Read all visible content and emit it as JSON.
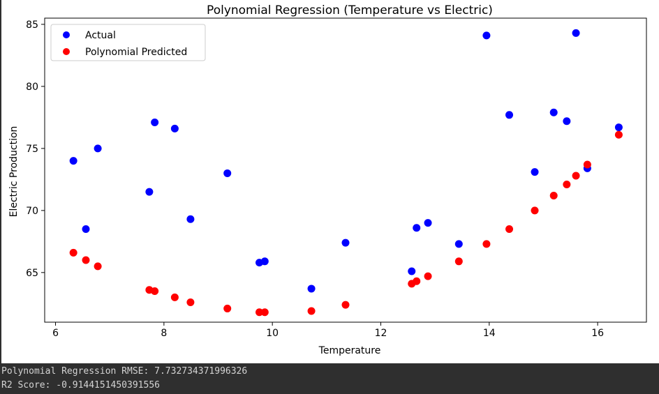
{
  "chart_data": {
    "type": "scatter",
    "title": "Polynomial Regression (Temperature vs Electric)",
    "xlabel": "Temperature",
    "ylabel": "Electric Production",
    "xlim": [
      5.8,
      16.9
    ],
    "ylim": [
      61.0,
      85.5
    ],
    "xticks": [
      "6",
      "8",
      "10",
      "12",
      "14",
      "16"
    ],
    "xtick_values": [
      6,
      8,
      10,
      12,
      14,
      16
    ],
    "yticks": [
      "65",
      "70",
      "75",
      "80",
      "85"
    ],
    "ytick_values": [
      65,
      70,
      75,
      80,
      85
    ],
    "grid": false,
    "legend_position": "top-left",
    "series": [
      {
        "name": "Actual",
        "color": "#0000ff",
        "x": [
          6.33,
          6.56,
          6.78,
          7.73,
          7.83,
          8.2,
          8.49,
          9.17,
          9.76,
          9.86,
          10.72,
          11.35,
          12.57,
          12.66,
          12.87,
          13.44,
          13.95,
          14.37,
          14.84,
          15.19,
          15.43,
          15.6,
          15.81,
          16.39
        ],
        "y": [
          74.0,
          68.5,
          75.0,
          71.5,
          77.1,
          76.6,
          69.3,
          73.0,
          65.8,
          65.9,
          63.7,
          67.4,
          65.1,
          68.6,
          69.0,
          67.3,
          84.1,
          77.7,
          73.1,
          77.9,
          77.2,
          84.3,
          73.4,
          76.7
        ]
      },
      {
        "name": "Polynomial Predicted",
        "color": "#ff0000",
        "x": [
          6.33,
          6.56,
          6.78,
          7.73,
          7.83,
          8.2,
          8.49,
          9.17,
          9.76,
          9.86,
          10.72,
          11.35,
          12.57,
          12.66,
          12.87,
          13.44,
          13.95,
          14.37,
          14.84,
          15.19,
          15.43,
          15.6,
          15.81,
          16.39
        ],
        "y": [
          66.6,
          66.0,
          65.5,
          63.6,
          63.5,
          63.0,
          62.6,
          62.1,
          61.8,
          61.8,
          61.9,
          62.4,
          64.1,
          64.3,
          64.7,
          65.9,
          67.3,
          68.5,
          70.0,
          71.2,
          72.1,
          72.8,
          73.7,
          76.1
        ]
      }
    ]
  },
  "output": {
    "line1": "Polynomial Regression RMSE: 7.732734371996326",
    "line2": "R2 Score: -0.9144151450391556"
  }
}
